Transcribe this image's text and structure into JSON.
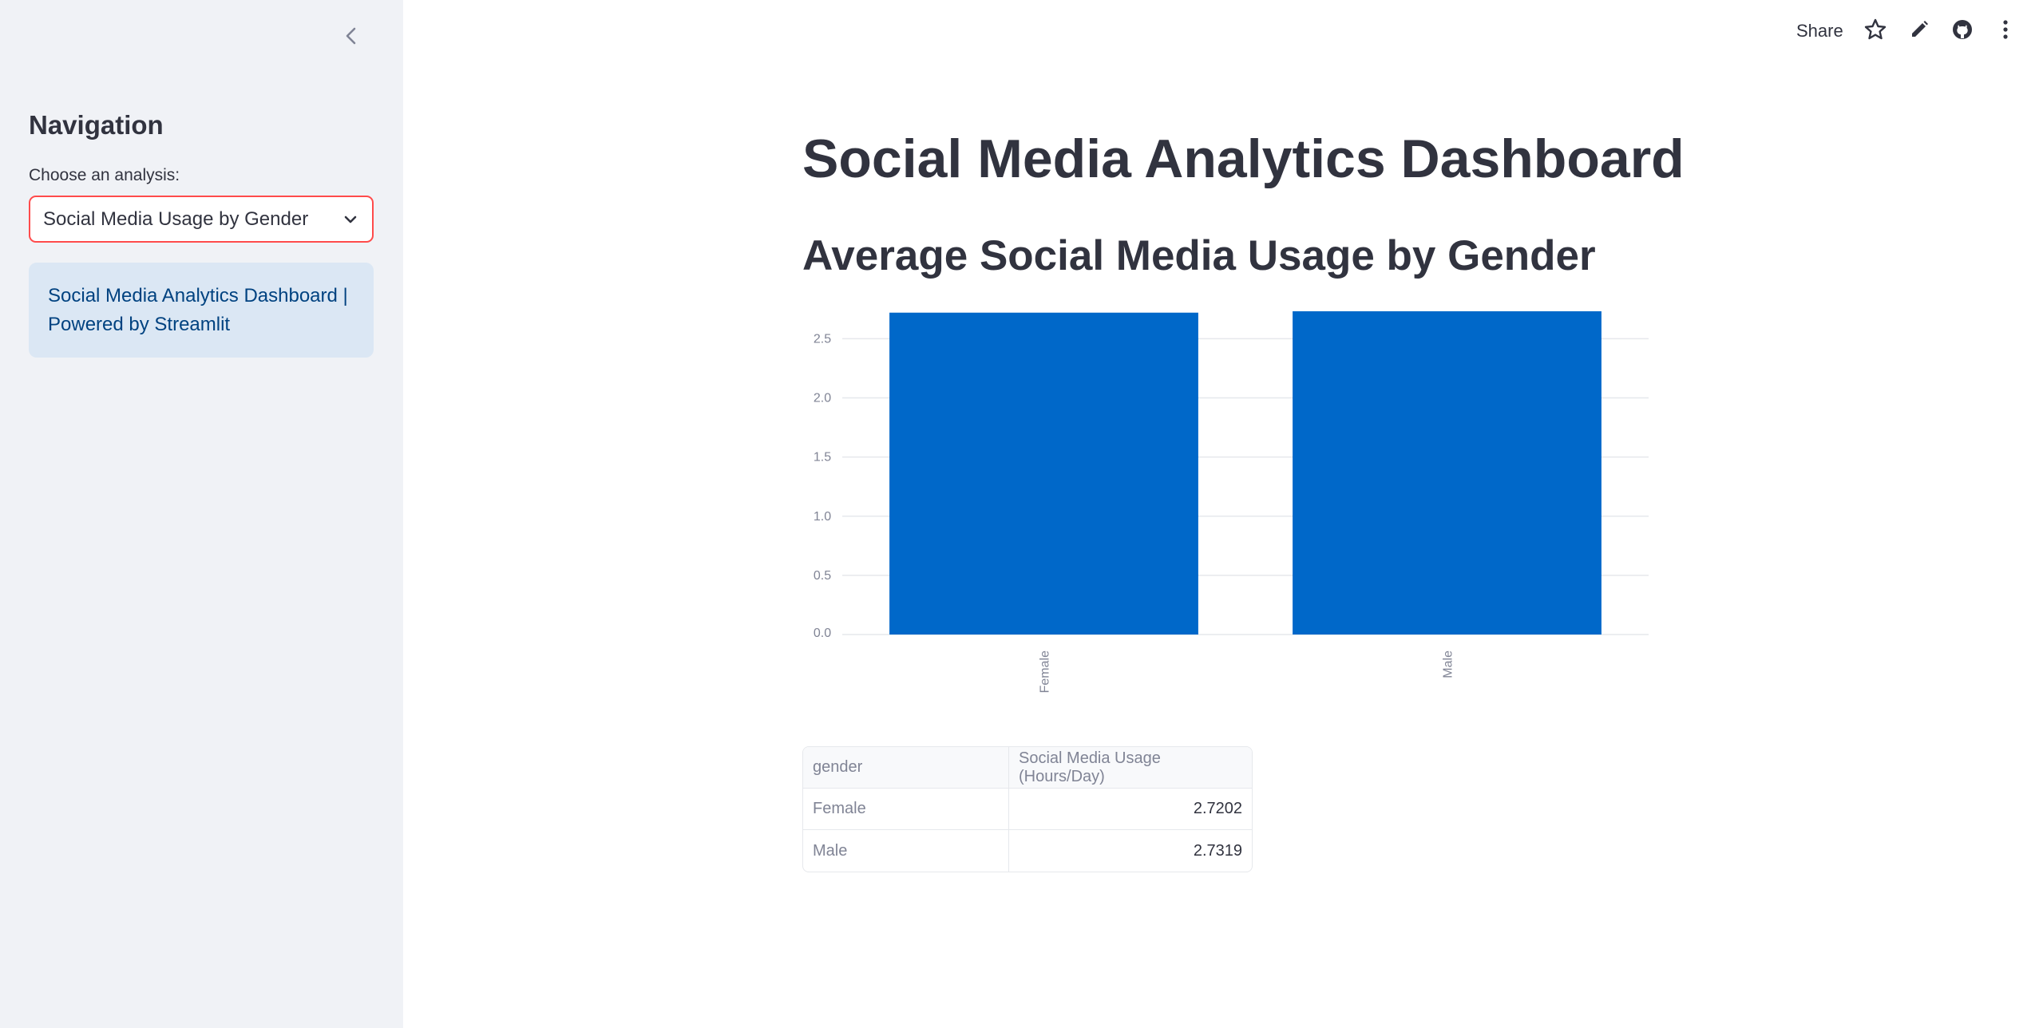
{
  "sidebar": {
    "title": "Navigation",
    "select_label": "Choose an analysis:",
    "select_value": "Social Media Usage by Gender",
    "info_text": "Social Media Analytics Dashboard | Powered by Streamlit"
  },
  "header": {
    "share_label": "Share"
  },
  "main": {
    "title": "Social Media Analytics Dashboard",
    "subtitle": "Average Social Media Usage by Gender"
  },
  "colors": {
    "bar": "#0068c9",
    "accent": "#ff4b4b"
  },
  "chart_data": {
    "type": "bar",
    "categories": [
      "Female",
      "Male"
    ],
    "values": [
      2.7202,
      2.7319
    ],
    "ylim": [
      0,
      2.7319
    ],
    "yticks": [
      "0.0",
      "0.5",
      "1.0",
      "1.5",
      "2.0",
      "2.5"
    ],
    "grid": true,
    "xlabel": "",
    "ylabel": ""
  },
  "table": {
    "columns": [
      "gender",
      "Social Media Usage (Hours/Day)"
    ],
    "rows": [
      [
        "Female",
        "2.7202"
      ],
      [
        "Male",
        "2.7319"
      ]
    ]
  }
}
